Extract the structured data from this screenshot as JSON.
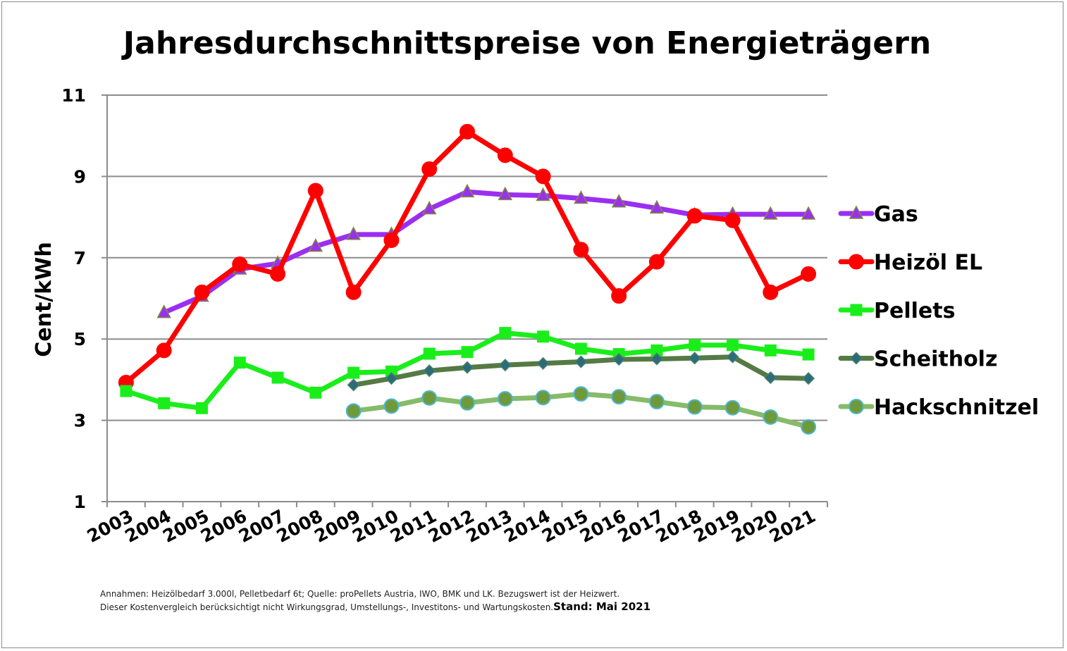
{
  "chart_data": {
    "type": "line",
    "title": "Jahresdurchschnittspreise von Energieträgern",
    "ylabel": "Cent/kWh",
    "xlabel": "",
    "ylim": [
      1,
      11
    ],
    "yticks": [
      1,
      3,
      5,
      7,
      9,
      11
    ],
    "grid": "horizontal",
    "legend": "right",
    "categories": [
      "2003",
      "2004",
      "2005",
      "2006",
      "2007",
      "2008",
      "2009",
      "2010",
      "2011",
      "2012",
      "2013",
      "2014",
      "2015",
      "2016",
      "2017",
      "2018",
      "2019",
      "2020",
      "2021"
    ],
    "series": [
      {
        "name": "Gas",
        "color": "#9b2ff0",
        "marker": "triangle",
        "marker_fill": "#9b2ff0",
        "marker_stroke": "#7e8c3a",
        "values": [
          null,
          5.65,
          6.05,
          6.72,
          6.86,
          7.28,
          7.57,
          7.57,
          8.2,
          8.62,
          8.55,
          8.53,
          8.46,
          8.37,
          8.22,
          8.05,
          8.07,
          8.07,
          8.07
        ]
      },
      {
        "name": "Heizöl EL",
        "color": "#ff0000",
        "marker": "circle",
        "marker_fill": "#ff0000",
        "marker_stroke": "#ff0000",
        "values": [
          3.93,
          4.72,
          6.15,
          6.84,
          6.6,
          8.65,
          6.15,
          7.43,
          9.18,
          10.1,
          9.52,
          9.0,
          7.2,
          6.06,
          6.9,
          8.03,
          7.92,
          6.15,
          6.6
        ]
      },
      {
        "name": "Pellets",
        "color": "#1aee1a",
        "marker": "square",
        "marker_fill": "#1aee1a",
        "marker_stroke": "#1aee1a",
        "values": [
          3.72,
          3.42,
          3.3,
          4.42,
          4.05,
          3.68,
          4.17,
          4.2,
          4.64,
          4.68,
          5.15,
          5.06,
          4.76,
          4.63,
          4.72,
          4.85,
          4.85,
          4.72,
          4.62
        ]
      },
      {
        "name": "Scheitholz",
        "color": "#557a44",
        "marker": "diamond",
        "marker_fill": "#2e6b7a",
        "marker_stroke": "#45806a",
        "values": [
          null,
          null,
          null,
          null,
          null,
          null,
          3.87,
          4.03,
          4.22,
          4.3,
          4.36,
          4.4,
          4.44,
          4.5,
          4.51,
          4.53,
          4.56,
          4.05,
          4.03
        ]
      },
      {
        "name": "Hackschnitzel",
        "color": "#86bb6a",
        "marker": "circle",
        "marker_fill": "#6f9a3b",
        "marker_stroke": "#4fb8d6",
        "values": [
          null,
          null,
          null,
          null,
          null,
          null,
          3.23,
          3.35,
          3.55,
          3.43,
          3.53,
          3.56,
          3.65,
          3.58,
          3.46,
          3.33,
          3.31,
          3.08,
          2.84
        ]
      }
    ]
  },
  "footnote": {
    "line1": "Annahmen: Heizölbedarf 3.000l, Pelletbedarf 6t; Quelle: proPellets Austria, IWO, BMK und LK. Bezugswert ist der Heizwert.",
    "line2": "Dieser Kostenvergleich berücksichtigt nicht Wirkungsgrad, Umstellungs-, Investitons- und  Wartungskosten.",
    "stand": "Stand: Mai 2021"
  }
}
